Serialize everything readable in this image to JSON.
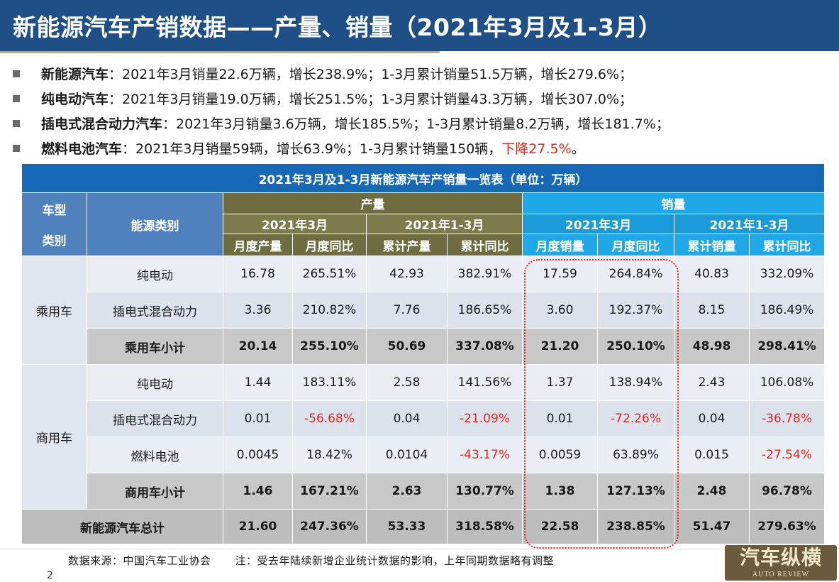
{
  "title": "新能源汽车产销数据——产量、销量（2021年3月及1-3月）",
  "bullets": [
    {
      "name": "新能源汽车",
      "text": "：2021年3月销量22.6万辆，增长238.9%；1-3月累计销量51.5万辆，增长279.6%；",
      "highlight": "",
      "tail": ""
    },
    {
      "name": "纯电动汽车",
      "text": "：2021年3月销量19.0万辆，增长251.5%；1-3月累计销量43.3万辆，增长307.0%；",
      "highlight": "",
      "tail": ""
    },
    {
      "name": "插电式混合动力汽车",
      "text": "：2021年3月销量3.6万辆，增长185.5%；1-3月累计销量8.2万辆，增长181.7%；",
      "highlight": "",
      "tail": ""
    },
    {
      "name": "燃料电池汽车",
      "text": "：2021年3月销量59辆，增长63.9%；1-3月累计销量150辆，",
      "highlight": "下降27.5%",
      "tail": "。"
    }
  ],
  "table": {
    "caption": "2021年3月及1-3月新能源汽车产销量一览表（单位：万辆）",
    "h_vehicle_line1": "车型",
    "h_vehicle_line2": "类别",
    "h_energy": "能源类别",
    "h_production": "产量",
    "h_sales": "销量",
    "h_month": "2021年3月",
    "h_ytd": "2021年1-3月",
    "sub": [
      "月度产量",
      "月度同比",
      "累计产量",
      "累计同比",
      "月度销量",
      "月度同比",
      "累计销量",
      "累计同比"
    ],
    "cat_passenger": "乘用车",
    "cat_commercial": "商用车",
    "rows": [
      {
        "energy": "纯电动",
        "v": [
          "16.78",
          "265.51%",
          "42.93",
          "382.91%",
          "17.59",
          "264.84%",
          "40.83",
          "332.09%"
        ]
      },
      {
        "energy": "插电式混合动力",
        "v": [
          "3.36",
          "210.82%",
          "7.76",
          "186.65%",
          "3.60",
          "192.37%",
          "8.15",
          "186.49%"
        ]
      },
      {
        "energy": "乘用车小计",
        "v": [
          "20.14",
          "255.10%",
          "50.69",
          "337.08%",
          "21.20",
          "250.10%",
          "48.98",
          "298.41%"
        ]
      },
      {
        "energy": "纯电动",
        "v": [
          "1.44",
          "183.11%",
          "2.58",
          "141.56%",
          "1.37",
          "138.94%",
          "2.43",
          "106.08%"
        ]
      },
      {
        "energy": "插电式混合动力",
        "v": [
          "0.01",
          "-56.68%",
          "0.04",
          "-21.09%",
          "0.01",
          "-72.26%",
          "0.04",
          "-36.78%"
        ]
      },
      {
        "energy": "燃料电池",
        "v": [
          "0.0045",
          "18.42%",
          "0.0104",
          "-43.17%",
          "0.0059",
          "63.89%",
          "0.015",
          "-27.54%"
        ]
      },
      {
        "energy": "商用车小计",
        "v": [
          "1.46",
          "167.21%",
          "2.63",
          "130.77%",
          "1.38",
          "127.13%",
          "2.48",
          "96.78%"
        ]
      },
      {
        "energy": "新能源汽车总计",
        "v": [
          "21.60",
          "247.36%",
          "53.33",
          "318.58%",
          "22.58",
          "238.85%",
          "51.47",
          "279.63%"
        ]
      }
    ]
  },
  "footer": {
    "source": "数据来源：中国汽车工业协会",
    "note": "注：受去年陆续新增企业统计数据的影响，上年同期数据略有调整"
  },
  "page_number": "2",
  "logo": {
    "cn": "汽车纵横",
    "en": "AUTO REVIEW"
  },
  "colors": {
    "title_bg": "#1e4f86",
    "caption_bg": "#1768b8",
    "production_header": "#6f6c42",
    "sales_header": "#1fa8e8",
    "negative": "#e0261d"
  }
}
